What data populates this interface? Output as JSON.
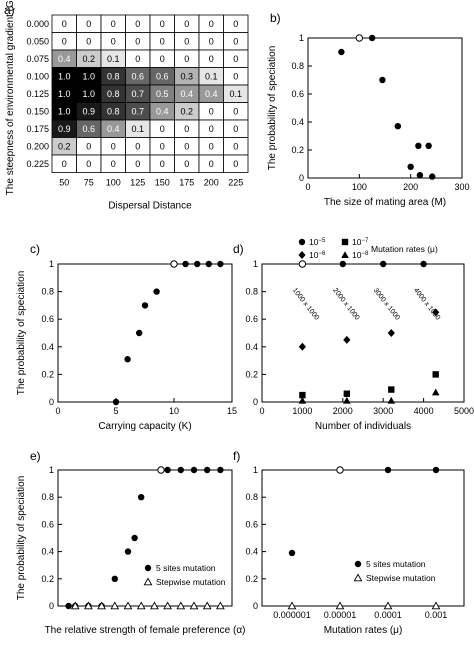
{
  "chart_data": [
    {
      "panel": "a)",
      "type": "heatmap",
      "xlabel": "Dispersal Distance",
      "ylabel": "The steepness of environmental gradient (G_E)",
      "x_ticks": [
        "50",
        "75",
        "100",
        "125",
        "150",
        "175",
        "200",
        "225"
      ],
      "y_ticks": [
        "0.000",
        "0.050",
        "0.075",
        "0.100",
        "0.125",
        "0.150",
        "0.175",
        "0.200",
        "0.225"
      ],
      "values": [
        [
          0,
          0,
          0,
          0,
          0,
          0,
          0,
          0
        ],
        [
          0,
          0,
          0,
          0,
          0,
          0,
          0,
          0
        ],
        [
          0.4,
          0.2,
          0.1,
          0,
          0,
          0,
          0,
          0
        ],
        [
          1.0,
          1.0,
          0.8,
          0.6,
          0.6,
          0.3,
          0.1,
          0
        ],
        [
          1.0,
          1.0,
          0.8,
          0.7,
          0.5,
          0.4,
          0.4,
          0.1
        ],
        [
          1.0,
          0.9,
          0.8,
          0.7,
          0.4,
          0.2,
          0,
          0
        ],
        [
          0.9,
          0.6,
          0.4,
          0.1,
          0,
          0,
          0,
          0
        ],
        [
          0.2,
          0,
          0,
          0,
          0,
          0,
          0,
          0
        ],
        [
          0,
          0,
          0,
          0,
          0,
          0,
          0,
          0
        ]
      ],
      "labels": [
        [
          "0",
          "0",
          "0",
          "0",
          "0",
          "0",
          "0",
          "0"
        ],
        [
          "0",
          "0",
          "0",
          "0",
          "0",
          "0",
          "0",
          "0"
        ],
        [
          "0.4",
          "0.2",
          "0.1",
          "0",
          "0",
          "0",
          "0",
          "0"
        ],
        [
          "1.0",
          "1.0",
          "0.8",
          "0.6",
          "0.6",
          "0.3",
          "0.1",
          "0"
        ],
        [
          "1.0",
          "1.0",
          "0.8",
          "0.7",
          "0.5",
          "0.4",
          "0.4",
          "0.1"
        ],
        [
          "1.0",
          "0.9",
          "0.8",
          "0.7",
          "0.4",
          "0.2",
          "0",
          "0"
        ],
        [
          "0.9",
          "0.6",
          "0.4",
          "0.1",
          "0",
          "0",
          "0",
          "0"
        ],
        [
          "0.2",
          "0",
          "0",
          "0",
          "0",
          "0",
          "0",
          "0"
        ],
        [
          "0",
          "0",
          "0",
          "0",
          "0",
          "0",
          "0",
          "0"
        ]
      ]
    },
    {
      "panel": "b)",
      "type": "scatter",
      "xlabel": "The size of mating area (M)",
      "ylabel": "The probability of speciation",
      "xlim": [
        0,
        300
      ],
      "ylim": [
        0,
        1
      ],
      "x_ticks": [
        "0",
        "100",
        "200",
        "300"
      ],
      "y_ticks": [
        "0",
        "0.2",
        "0.4",
        "0.6",
        "0.8",
        "1"
      ],
      "series": [
        {
          "marker": "filled-circle",
          "points": [
            [
              65,
              0.9
            ],
            [
              125,
              1.0
            ],
            [
              145,
              0.7
            ],
            [
              175,
              0.37
            ],
            [
              200,
              0.08
            ],
            [
              215,
              0.23
            ],
            [
              218,
              0.02
            ],
            [
              235,
              0.23
            ],
            [
              242,
              0.01
            ]
          ]
        },
        {
          "marker": "open-circle",
          "points": [
            [
              100,
              1.0
            ]
          ]
        }
      ]
    },
    {
      "panel": "c)",
      "type": "scatter",
      "xlabel": "Carrying capacity  (K)",
      "ylabel": "The probability of speciation",
      "xlim": [
        0,
        15
      ],
      "ylim": [
        0,
        1
      ],
      "x_ticks": [
        "0",
        "5",
        "10",
        "15"
      ],
      "y_ticks": [
        "0",
        "0.2",
        "0.4",
        "0.6",
        "0.8",
        "1"
      ],
      "series": [
        {
          "marker": "filled-circle",
          "points": [
            [
              5,
              0.0
            ],
            [
              6,
              0.31
            ],
            [
              7,
              0.5
            ],
            [
              7.5,
              0.7
            ],
            [
              8.5,
              0.8
            ],
            [
              11,
              1.0
            ],
            [
              12,
              1.0
            ],
            [
              13,
              1.0
            ],
            [
              14,
              1.0
            ]
          ]
        },
        {
          "marker": "open-circle",
          "points": [
            [
              10,
              1.0
            ]
          ]
        }
      ]
    },
    {
      "panel": "d)",
      "type": "scatter",
      "xlabel": "Number of individuals",
      "legend_title": "Mutation rates (μ)",
      "xlim": [
        0,
        5000
      ],
      "ylim": [
        0,
        1
      ],
      "x_ticks": [
        "0",
        "1000",
        "2000",
        "3000",
        "4000",
        "5000"
      ],
      "y_ticks": [
        "0",
        "0.2",
        "0.4",
        "0.6",
        "0.8",
        "1"
      ],
      "annotations": [
        "1000 x 1000",
        "2000 x 1000",
        "3000 x 1000",
        "4000 x 1000"
      ],
      "series": [
        {
          "name": "10^-5",
          "marker": "filled-circle",
          "points": [
            [
              2000,
              1.0
            ],
            [
              3000,
              1.0
            ],
            [
              4000,
              1.0
            ]
          ]
        },
        {
          "name": "10^-6",
          "marker": "filled-diamond",
          "points": [
            [
              1000,
              0.4
            ],
            [
              2100,
              0.45
            ],
            [
              3200,
              0.5
            ],
            [
              4300,
              0.65
            ]
          ]
        },
        {
          "name": "10^-7",
          "marker": "filled-square",
          "points": [
            [
              1000,
              0.05
            ],
            [
              2100,
              0.06
            ],
            [
              3200,
              0.09
            ],
            [
              4300,
              0.2
            ]
          ]
        },
        {
          "name": "10^-8",
          "marker": "filled-triangle",
          "points": [
            [
              1000,
              0.01
            ],
            [
              2100,
              0.01
            ],
            [
              3200,
              0.01
            ],
            [
              4300,
              0.07
            ]
          ]
        },
        {
          "marker": "open-circle",
          "points": [
            [
              1000,
              1.0
            ]
          ]
        }
      ]
    },
    {
      "panel": "e)",
      "type": "scatter",
      "xlabel": "The relative strength of female preference (α)",
      "ylabel": "The probability of speciation",
      "ylim": [
        0,
        1
      ],
      "y_ticks": [
        "0",
        "0.2",
        "0.4",
        "0.6",
        "0.8",
        "1"
      ],
      "series": [
        {
          "name": "5 sites mutation",
          "marker": "filled-circle",
          "points": [
            [
              0.5,
              0
            ],
            [
              1,
              0
            ],
            [
              2,
              0
            ],
            [
              3,
              0
            ],
            [
              4,
              0.2
            ],
            [
              5,
              0.4
            ],
            [
              5.5,
              0.5
            ],
            [
              6,
              0.8
            ],
            [
              8,
              1.0
            ],
            [
              9,
              1.0
            ],
            [
              10,
              1.0
            ],
            [
              11,
              1.0
            ],
            [
              12,
              1.0
            ]
          ]
        },
        {
          "name": "Stepwise mutation",
          "marker": "open-triangle",
          "points": [
            [
              1,
              0
            ],
            [
              2,
              0
            ],
            [
              3,
              0
            ],
            [
              4,
              0
            ],
            [
              5,
              0
            ],
            [
              6,
              0
            ],
            [
              7,
              0
            ],
            [
              8,
              0
            ],
            [
              9,
              0
            ],
            [
              10,
              0
            ],
            [
              11,
              0
            ],
            [
              12,
              0
            ]
          ]
        },
        {
          "marker": "open-circle",
          "points": [
            [
              7.5,
              1.0
            ]
          ]
        }
      ]
    },
    {
      "panel": "f)",
      "type": "scatter",
      "xlabel": "Mutation rates (μ)",
      "x_scale": "log",
      "ylim": [
        0,
        1
      ],
      "x_ticks": [
        "0.000001",
        "0.00001",
        "0.0001",
        "0.001"
      ],
      "y_ticks": [
        "0",
        "0.2",
        "0.4",
        "0.6",
        "0.8",
        "1"
      ],
      "series": [
        {
          "name": "5 sites mutation",
          "marker": "filled-circle",
          "points": [
            [
              1e-06,
              0.39
            ],
            [
              0.0001,
              1.0
            ],
            [
              0.001,
              1.0
            ]
          ]
        },
        {
          "name": "Stepwise mutation",
          "marker": "open-triangle",
          "points": [
            [
              1e-06,
              0
            ],
            [
              1e-05,
              0
            ],
            [
              0.0001,
              0
            ],
            [
              0.001,
              0
            ]
          ]
        },
        {
          "marker": "open-circle",
          "points": [
            [
              1e-05,
              1.0
            ]
          ]
        }
      ]
    }
  ],
  "legends": {
    "d": {
      "title": "Mutation rates (μ)",
      "items": [
        {
          "label": "10",
          "exp": "−5",
          "marker": "filled-circle"
        },
        {
          "label": "10",
          "exp": "−6",
          "marker": "filled-diamond"
        },
        {
          "label": "10",
          "exp": "−7",
          "marker": "filled-square"
        },
        {
          "label": "10",
          "exp": "−8",
          "marker": "filled-triangle"
        }
      ]
    },
    "e": {
      "items": [
        {
          "label": "5 sites mutation",
          "marker": "filled-circle"
        },
        {
          "label": "Stepwise mutation",
          "marker": "open-triangle"
        }
      ]
    },
    "f": {
      "items": [
        {
          "label": "5 sites mutation",
          "marker": "filled-circle"
        },
        {
          "label": "Stepwise mutation",
          "marker": "open-triangle"
        }
      ]
    }
  }
}
